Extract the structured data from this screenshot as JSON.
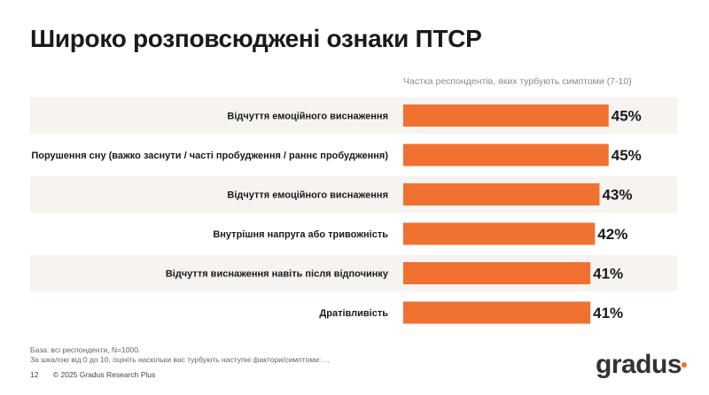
{
  "page": {
    "title": "Широко розповсюджені ознаки ПТСР",
    "subtitle": "Частка респондентів, яких турбують симптоми (7-10)",
    "footnote_base": "База: всі респонденти, N=1000.",
    "footnote_question": "За шкалою від 0 до 10, оцініть наскільки вас турбують наступні фактори/симптоми: ...",
    "page_number": "12",
    "copyright": "© 2025 Gradus Research Plus",
    "logo_text": "gradus"
  },
  "colors": {
    "bar": "#F07030",
    "row_band": "#F6F3F0",
    "logo_dot": "#F07030"
  },
  "chart_data": {
    "type": "bar",
    "orientation": "horizontal",
    "categories": [
      "Відчуття емоційного виснаження",
      "Порушення сну (важко заснути / часті пробудження / раннє пробудження)",
      "Відчуття емоційного виснаження",
      "Внутрішня напруга або тривожність",
      "Відчуття виснаження навіть після відпочинку",
      "Дратівливість"
    ],
    "values": [
      45,
      45,
      43,
      42,
      41,
      41
    ],
    "value_labels": [
      "45%",
      "45%",
      "43%",
      "42%",
      "41%",
      "41%"
    ],
    "xlim": [
      0,
      100
    ],
    "grid": false,
    "legend": "none"
  }
}
